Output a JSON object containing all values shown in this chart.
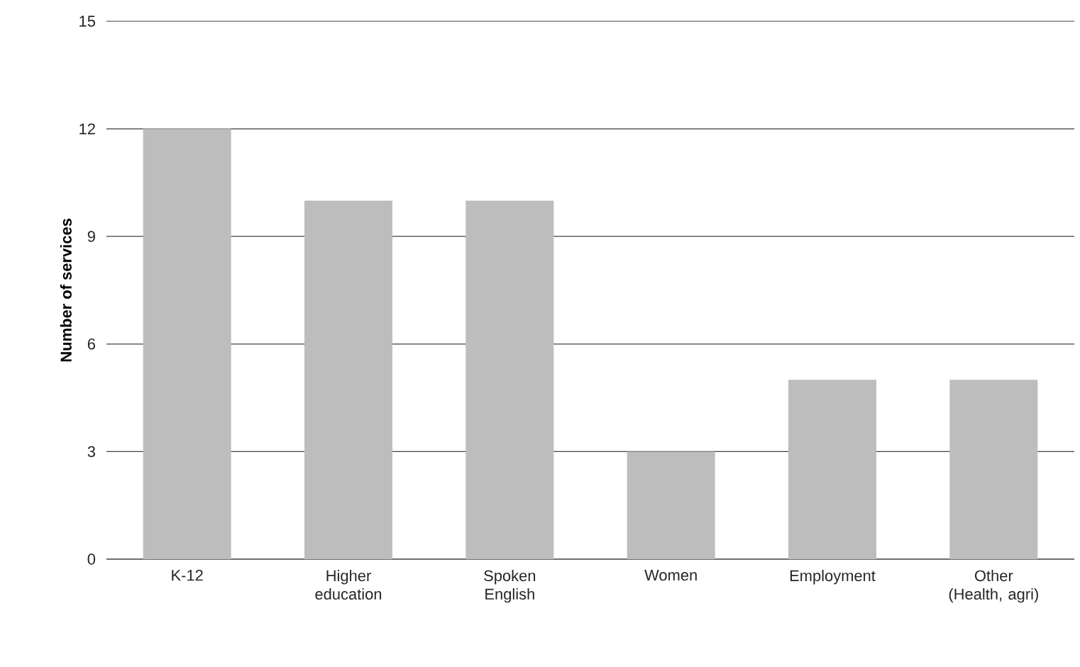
{
  "chart_data": {
    "type": "bar",
    "ylabel": "Number of services",
    "categories": [
      "K-12",
      "Higher education",
      "Spoken English",
      "Women",
      "Employment",
      "Other (Health, agri)"
    ],
    "values": [
      12,
      10,
      10,
      3,
      5,
      5
    ],
    "color": "#bdbdbd",
    "ylim": [
      0,
      15
    ],
    "yticks": [
      0,
      3,
      6,
      9,
      12,
      15
    ],
    "grid": "y"
  }
}
